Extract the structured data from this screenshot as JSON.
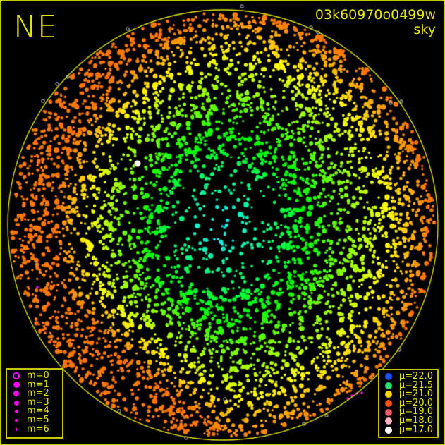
{
  "header": {
    "direction": "NE",
    "image_id": "03k60970o0499w",
    "mode": "sky"
  },
  "magnitude_legend": {
    "color": "#ff00ff",
    "items": [
      {
        "label": "m=0",
        "symbol": "open-circle"
      },
      {
        "label": "m=1",
        "symbol": "filled-circle"
      },
      {
        "label": "m=2",
        "symbol": "filled-circle"
      },
      {
        "label": "m=3",
        "symbol": "filled-circle"
      },
      {
        "label": "m=4",
        "symbol": "filled-circle"
      },
      {
        "label": "m=5",
        "symbol": "filled-circle"
      },
      {
        "label": "m=6",
        "symbol": "filled-circle"
      }
    ]
  },
  "brightness_legend": {
    "items": [
      {
        "label": "μ=22.0",
        "color": "#1e50ff"
      },
      {
        "label": "μ=21.5",
        "color": "#20e070"
      },
      {
        "label": "μ=21.0",
        "color": "#ffd800"
      },
      {
        "label": "μ=20.0",
        "color": "#ff5010"
      },
      {
        "label": "μ=19.0",
        "color": "#f05a6a"
      },
      {
        "label": "μ=18.0",
        "color": "#ffb0c0"
      },
      {
        "label": "μ=17.0",
        "color": "#ffffff"
      }
    ]
  },
  "colors": {
    "horizon": "#e6e600",
    "text": "#e6e600",
    "background": "#000000"
  }
}
